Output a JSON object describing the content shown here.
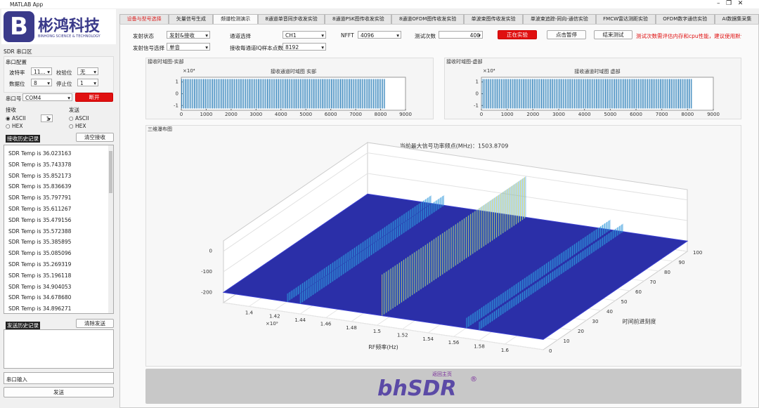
{
  "window_title": "MATLAB App",
  "logo": {
    "name": "彬鸿科技",
    "subtitle": "BINHONG SCIENCE & TECHNOLOGY"
  },
  "serial": {
    "title": "SDR 串口区",
    "config_title": "串口配置",
    "baud_label": "波特率",
    "baud": "11...",
    "parity_label": "校验位",
    "parity": "无",
    "data_bits_label": "数据位",
    "data_bits": "8",
    "stop_bits_label": "停止位",
    "stop_bits": "1",
    "port_label": "串口号",
    "port": "COM4",
    "disconnect": "断开",
    "rx_label": "接收",
    "rx_ascii": "ASCII",
    "rx_hex": "HEX",
    "rx_spinner": "1",
    "tx_label": "发送",
    "tx_ascii": "ASCII",
    "tx_hex": "HEX",
    "rx_history": "接收历史记录",
    "clear_rx": "清空接收",
    "rx_lines": [
      "SDR Temp is 36.023163",
      "SDR Temp is 35.743378",
      "SDR Temp is 35.852173",
      "SDR Temp is 35.836639",
      "SDR Temp is 35.797791",
      "SDR Temp is 35.611267",
      "SDR Temp is 35.479156",
      "SDR Temp is 35.572388",
      "SDR Temp is 35.385895",
      "SDR Temp is 35.085096",
      "SDR Temp is 35.269319",
      "SDR Temp is 35.196118",
      "SDR Temp is 34.904053",
      "SDR Temp is 34.678680",
      "SDR Temp is 34.896271"
    ],
    "tx_history": "发送历史记录",
    "clear_tx": "清除发送",
    "input_placeholder": "串口输入",
    "send": "发送"
  },
  "tabs": [
    "设备与型号选择",
    "矢量信号生成",
    "频谱检测演示",
    "8通道单音同步收发实验",
    "8通道PSK图传收发实验",
    "8通道OFDM图传收发实验",
    "单波束图传收发实验",
    "单波束追踪-同向-通信实验",
    "FMCW雷达测距实验",
    "OFDM数字通信实验",
    "AI数据集采集"
  ],
  "active_tab": 2,
  "controls": {
    "tx_state_label": "发射状态",
    "tx_state": "发射&接收",
    "channel_label": "通道选择",
    "channel": "CH1",
    "nfft_label": "NFFT",
    "nfft": "4096",
    "count_label": "测试次数",
    "count": "400",
    "running": "正在实验",
    "pause": "点击暂停",
    "stop": "结束测试",
    "warning": "测试次数需评估内存和cpu性能，建议使用默认值",
    "signal_label": "发射信号选择",
    "signal": "单音",
    "samples_label": "接收每通道IQ样本点数",
    "samples": "8192"
  },
  "chart_data": [
    {
      "type": "waveform",
      "panel": "接收时域图-实部",
      "title": "接收通道时域图 实部",
      "exponent": "×10⁴",
      "xlim": [
        0,
        9000
      ],
      "xticks": [
        0,
        1000,
        2000,
        3000,
        4000,
        5000,
        6000,
        7000,
        8000,
        9000
      ],
      "ylim": [
        -1.4,
        1.4
      ],
      "yticks": [
        -1,
        0,
        1
      ],
      "x_range": [
        0,
        8192
      ],
      "amplitude": 1.25,
      "color": "#1f77b4"
    },
    {
      "type": "waveform",
      "panel": "接收时域图-虚部",
      "title": "接收通道时域图 虚部",
      "exponent": "×10⁴",
      "xlim": [
        0,
        9000
      ],
      "xticks": [
        0,
        1000,
        2000,
        3000,
        4000,
        5000,
        6000,
        7000,
        8000,
        9000
      ],
      "ylim": [
        -1.4,
        1.4
      ],
      "yticks": [
        -1,
        0,
        1
      ],
      "x_range": [
        0,
        8192
      ],
      "amplitude": 1.25,
      "color": "#1f77b4"
    },
    {
      "type": "waterfall",
      "panel": "三维瀑布图",
      "title": "当前最大信号功率频点(MHz)：1503.8709",
      "x_label": "RF频率(Hz)",
      "x_exponent": "×10⁹",
      "y_label": "时间前进刻度",
      "xlim": [
        1.38,
        1.63
      ],
      "xticks": [
        1.4,
        1.42,
        1.44,
        1.46,
        1.48,
        1.5,
        1.52,
        1.54,
        1.56,
        1.58,
        1.6
      ],
      "ylim": [
        0,
        100
      ],
      "yticks": [
        0,
        10,
        20,
        30,
        40,
        50,
        60,
        70,
        80,
        90,
        100
      ],
      "zlim": [
        -250,
        50
      ],
      "zticks": [
        -200,
        -100,
        0
      ],
      "noise_floor": -200,
      "floor_color": "#2b2fa8",
      "ridges": [
        {
          "f": 1.43,
          "peak": -160,
          "color": "#2f9fe0"
        },
        {
          "f": 1.44,
          "peak": -150,
          "color": "#2f9fe0"
        },
        {
          "f": 1.504,
          "peak": 0,
          "color": "#e6df5c"
        },
        {
          "f": 1.57,
          "peak": -150,
          "color": "#2f9fe0"
        },
        {
          "f": 1.58,
          "peak": -160,
          "color": "#2f9fe0"
        }
      ]
    }
  ],
  "home": {
    "button": "返回主页",
    "logo": "bhSDR",
    "reg": "®"
  }
}
